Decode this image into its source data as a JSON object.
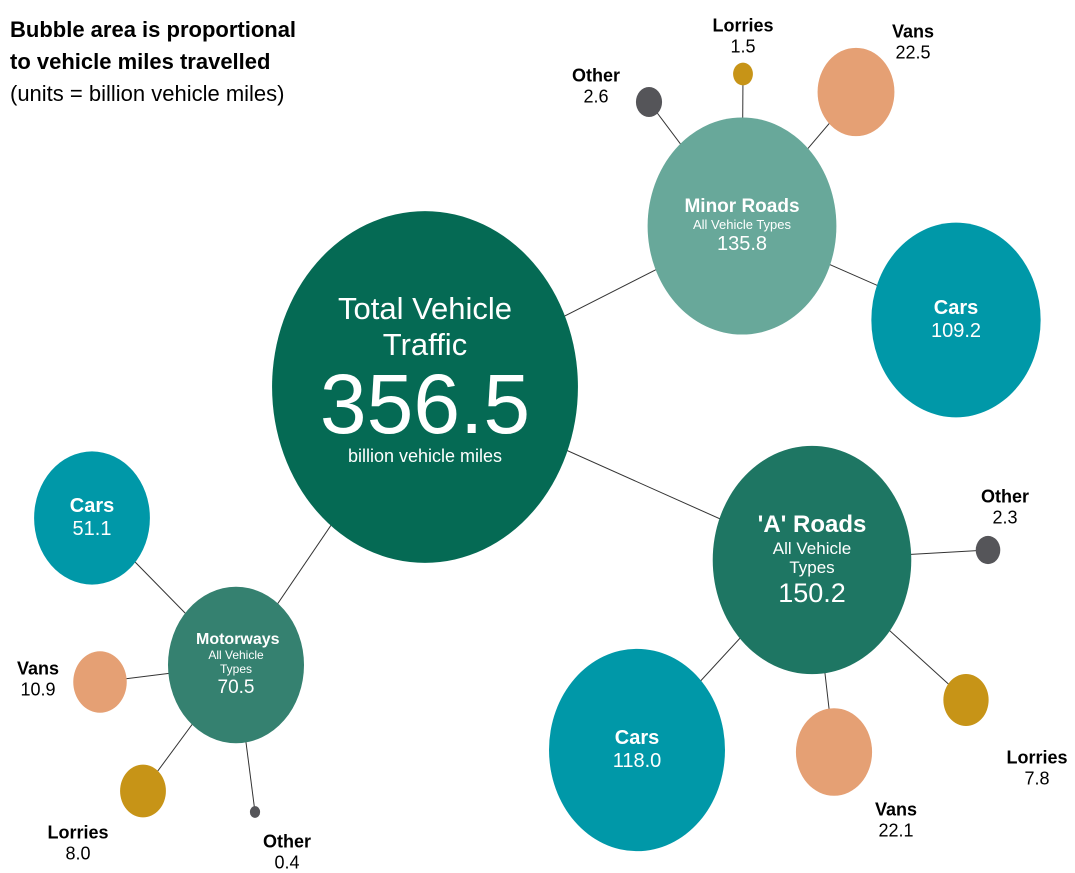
{
  "title_lines": [
    "Bubble area is proportional",
    "to vehicle miles travelled"
  ],
  "subtitle": "(units = billion vehicle miles)",
  "total": {
    "label": "Total Vehicle Traffic",
    "value": 356.5,
    "unit": "billion vehicle miles",
    "color": "#056a54"
  },
  "roads": [
    {
      "name": "Minor Roads",
      "sublabel": "All Vehicle Types",
      "value": 135.8,
      "color": "#68a89a",
      "vehicles": [
        {
          "name": "Cars",
          "value": 109.2,
          "color": "#0098a8"
        },
        {
          "name": "Vans",
          "value": 22.5,
          "color": "#e5a074"
        },
        {
          "name": "Lorries",
          "value": 1.5,
          "color": "#c79417"
        },
        {
          "name": "Other",
          "value": 2.6,
          "color": "#555559"
        }
      ]
    },
    {
      "name": "'A' Roads",
      "sublabel": "All Vehicle Types",
      "value": 150.2,
      "color": "#1e7663",
      "vehicles": [
        {
          "name": "Cars",
          "value": 118,
          "value_label": "118.0",
          "color": "#0098a8"
        },
        {
          "name": "Vans",
          "value": 22.1,
          "color": "#e5a074"
        },
        {
          "name": "Lorries",
          "value": 7.8,
          "color": "#c79417"
        },
        {
          "name": "Other",
          "value": 2.3,
          "color": "#555559"
        }
      ]
    },
    {
      "name": "Motorways",
      "sublabel": "All Vehicle Types",
      "value": 70.5,
      "color": "#358170",
      "vehicles": [
        {
          "name": "Cars",
          "value": 51.1,
          "color": "#0098a8"
        },
        {
          "name": "Vans",
          "value": 10.9,
          "color": "#e5a074"
        },
        {
          "name": "Lorries",
          "value": 8,
          "value_label": "8.0",
          "color": "#c79417"
        },
        {
          "name": "Other",
          "value": 0.4,
          "color": "#555559"
        }
      ]
    }
  ]
}
